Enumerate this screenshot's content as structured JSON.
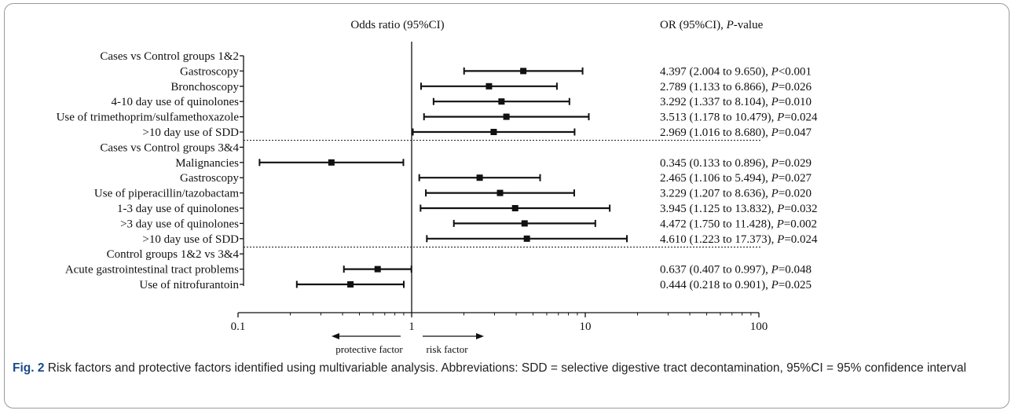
{
  "chart_data": {
    "type": "forest",
    "header_left": "Odds ratio  (95%CI)",
    "header_right_pre": "OR (95%CI), ",
    "header_right_p": "P",
    "header_right_post": "-value",
    "x_scale": "log",
    "xlim": [
      0.1,
      100
    ],
    "x_ticks": [
      "0.1",
      "1",
      "10",
      "100"
    ],
    "reference_line": 1,
    "arrow_left_label": "protective factor",
    "arrow_right_label": "risk  factor",
    "groups": [
      {
        "title": "Cases vs Control groups 1&2",
        "rows": [
          {
            "label": "Gastroscopy",
            "or": 4.397,
            "lo": 2.004,
            "hi": 9.65,
            "ci_text": "4.397 (2.004 to 9.650), ",
            "p_text": "<0.001"
          },
          {
            "label": "Bronchoscopy",
            "or": 2.789,
            "lo": 1.133,
            "hi": 6.866,
            "ci_text": "2.789 (1.133 to 6.866), ",
            "p_text": "=0.026"
          },
          {
            "label": "4-10 day use of quinolones",
            "or": 3.292,
            "lo": 1.337,
            "hi": 8.104,
            "ci_text": "3.292 (1.337 to 8.104), ",
            "p_text": "=0.010"
          },
          {
            "label": "Use of trimethoprim/sulfamethoxazole",
            "or": 3.513,
            "lo": 1.178,
            "hi": 10.479,
            "ci_text": "3.513 (1.178 to 10.479), ",
            "p_text": "=0.024"
          },
          {
            "label": ">10 day use of SDD",
            "or": 2.969,
            "lo": 1.016,
            "hi": 8.68,
            "ci_text": "2.969 (1.016 to 8.680), ",
            "p_text": "=0.047"
          }
        ]
      },
      {
        "title": "Cases vs Control groups 3&4",
        "rows": [
          {
            "label": "Malignancies",
            "or": 0.345,
            "lo": 0.133,
            "hi": 0.896,
            "ci_text": "0.345 (0.133 to 0.896), ",
            "p_text": "=0.029"
          },
          {
            "label": "Gastroscopy",
            "or": 2.465,
            "lo": 1.106,
            "hi": 5.494,
            "ci_text": "2.465 (1.106 to 5.494), ",
            "p_text": "=0.027"
          },
          {
            "label": "Use of piperacillin/tazobactam",
            "or": 3.229,
            "lo": 1.207,
            "hi": 8.636,
            "ci_text": "3.229 (1.207 to 8.636), ",
            "p_text": "=0.020"
          },
          {
            "label": "1-3 day use of quinolones",
            "or": 3.945,
            "lo": 1.125,
            "hi": 13.832,
            "ci_text": "3.945 (1.125 to 13.832), ",
            "p_text": "=0.032"
          },
          {
            "label": ">3 day use of quinolones",
            "or": 4.472,
            "lo": 1.75,
            "hi": 11.428,
            "ci_text": "4.472 (1.750 to 11.428), ",
            "p_text": "=0.002"
          },
          {
            "label": ">10 day use of SDD",
            "or": 4.61,
            "lo": 1.223,
            "hi": 17.373,
            "ci_text": "4.610 (1.223 to 17.373), ",
            "p_text": "=0.024"
          }
        ]
      },
      {
        "title": "Control groups 1&2 vs 3&4",
        "rows": [
          {
            "label": "Acute gastrointestinal tract problems",
            "or": 0.637,
            "lo": 0.407,
            "hi": 0.997,
            "ci_text": "0.637  (0.407 to 0.997), ",
            "p_text": "=0.048"
          },
          {
            "label": "Use of nitrofurantoin",
            "or": 0.444,
            "lo": 0.218,
            "hi": 0.901,
            "ci_text": "0.444  (0.218 to 0.901), ",
            "p_text": "=0.025"
          }
        ]
      }
    ]
  },
  "caption": {
    "label": "Fig. 2",
    "text": " Risk factors and protective factors identified using multivariable analysis. Abbreviations: SDD = selective digestive tract decontamination, 95%CI = 95% confidence interval"
  },
  "colors": {
    "ink": "#111111",
    "frame": "#9a9a9a",
    "label": "#1a4a8a"
  }
}
